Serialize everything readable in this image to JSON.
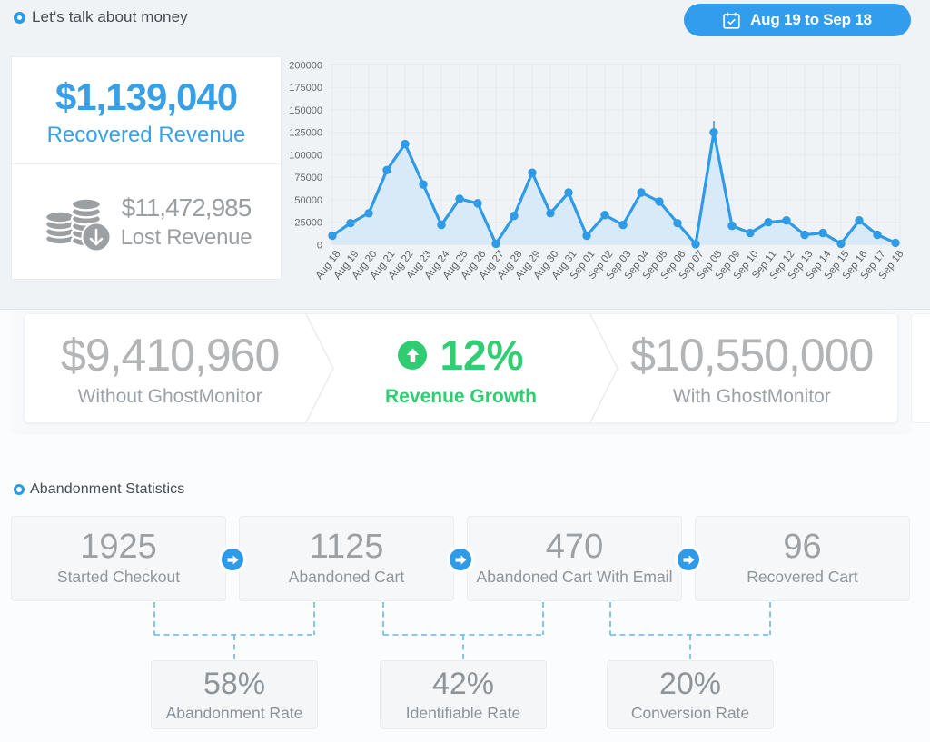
{
  "header": {
    "title": "Let's talk about money",
    "date_range": "Aug 19 to Sep 18"
  },
  "revenue_card": {
    "recovered": {
      "value": "$1,139,040",
      "label": "Recovered Revenue"
    },
    "lost": {
      "value": "$11,472,985",
      "label": "Lost Revenue"
    }
  },
  "chart_data": {
    "type": "line",
    "title": "",
    "xlabel": "",
    "ylabel": "",
    "x": [
      "Aug 18",
      "Aug 19",
      "Aug 20",
      "Aug 21",
      "Aug 22",
      "Aug 23",
      "Aug 24",
      "Aug 25",
      "Aug 26",
      "Aug 27",
      "Aug 28",
      "Aug 29",
      "Aug 30",
      "Aug 31",
      "Sep 01",
      "Sep 02",
      "Sep 03",
      "Sep 04",
      "Sep 05",
      "Sep 06",
      "Sep 07",
      "Sep 08",
      "Sep 09",
      "Sep 10",
      "Sep 11",
      "Sep 12",
      "Sep 13",
      "Sep 14",
      "Sep 15",
      "Sep 16",
      "Sep 17",
      "Sep 18"
    ],
    "values": [
      10000,
      24000,
      35000,
      83000,
      112000,
      67000,
      22000,
      51000,
      46000,
      1000,
      32000,
      80000,
      35000,
      58000,
      10000,
      33000,
      22000,
      58000,
      48000,
      24000,
      500,
      125000,
      21000,
      13000,
      25000,
      27000,
      11000,
      13000,
      1000,
      27000,
      11000,
      2000
    ],
    "ylim": [
      0,
      200000
    ],
    "yticks": [
      0,
      25000,
      50000,
      75000,
      100000,
      125000,
      150000,
      175000,
      200000
    ],
    "grid": true,
    "legend": false,
    "line_color": "#2f9be6",
    "fill_color": "#d8e9f7"
  },
  "comparison": {
    "without": {
      "value": "$9,410,960",
      "label": "Without GhostMonitor"
    },
    "growth": {
      "value": "12%",
      "label": "Revenue Growth"
    },
    "with": {
      "value": "$10,550,000",
      "label": "With GhostMonitor"
    }
  },
  "abandonment": {
    "title": "Abandonment Statistics",
    "funnel": [
      {
        "value": "1925",
        "label": "Started Checkout"
      },
      {
        "value": "1125",
        "label": "Abandoned Cart"
      },
      {
        "value": "470",
        "label": "Abandoned Cart With Email"
      },
      {
        "value": "96",
        "label": "Recovered Cart"
      }
    ],
    "rates": [
      {
        "value": "58%",
        "label": "Abandonment Rate"
      },
      {
        "value": "42%",
        "label": "Identifiable Rate"
      },
      {
        "value": "20%",
        "label": "Conversion Rate"
      }
    ]
  },
  "colors": {
    "accent_blue": "#2f9be6",
    "green": "#2fcd72",
    "top_bg": "#f0f3f5",
    "page_bg": "#fbfcfd"
  }
}
